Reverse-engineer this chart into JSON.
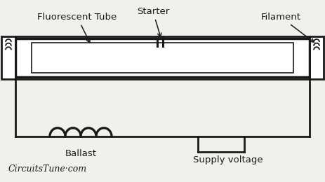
{
  "bg_color": "#f0f0ec",
  "line_color": "#1a1a1a",
  "text_color": "#1a1a1a",
  "title_text": "CircuitsTune·com",
  "labels": {
    "fluorescent_tube": "Fluorescent Tube",
    "starter": "Starter",
    "filament": "Filament",
    "ballast": "Ballast",
    "supply_voltage": "Supply voltage"
  },
  "figsize": [
    4.63,
    2.6
  ],
  "dpi": 100
}
